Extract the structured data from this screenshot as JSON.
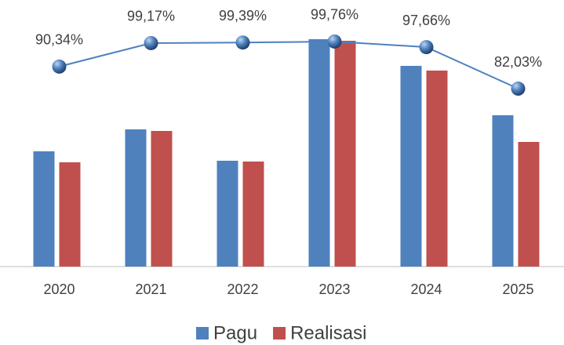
{
  "chart_data": {
    "type": "bar",
    "categories": [
      "2020",
      "2021",
      "2022",
      "2023",
      "2024",
      "2025"
    ],
    "series": [
      {
        "name": "Pagu",
        "color": "#4f81bd",
        "values": [
          147,
          175,
          135,
          290,
          256,
          193
        ]
      },
      {
        "name": "Realisasi",
        "color": "#c0504d",
        "values": [
          133,
          173,
          134,
          288,
          250,
          159
        ]
      },
      {
        "type": "line",
        "axis": "y2",
        "color": "#4f81bd",
        "values": [
          90.34,
          99.17,
          99.39,
          99.76,
          97.66,
          82.03
        ],
        "value_labels": [
          "90,34%",
          "99,17%",
          "99,39%",
          "99,76%",
          "97,66%",
          "82,03%"
        ]
      }
    ],
    "ylim": [
      0,
      320
    ],
    "y2lim": [
      15,
      109.5
    ],
    "legend": "bottom"
  }
}
